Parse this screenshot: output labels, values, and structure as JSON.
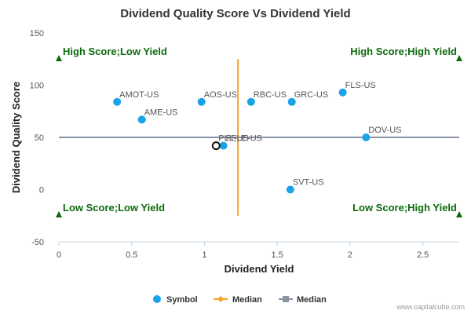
{
  "chart_data": {
    "type": "scatter",
    "title": "Dividend Quality Score Vs Dividend Yield",
    "xlabel": "Dividend Yield",
    "ylabel": "Dividend Quality Score",
    "xlim": [
      0,
      2.75
    ],
    "ylim": [
      -50,
      150
    ],
    "xticks": [
      0,
      0.5,
      1,
      1.5,
      2,
      2.5
    ],
    "xtick_labels": [
      "0",
      "0.5",
      "1",
      "1.5",
      "2",
      "2.5"
    ],
    "yticks": [
      -50,
      0,
      50,
      100,
      150
    ],
    "ytick_labels": [
      "-50",
      "0",
      "50",
      "100",
      "150"
    ],
    "grid": false,
    "legend_position": "bottom",
    "series": [
      {
        "name": "Symbol",
        "color": "#1aa3e8",
        "points": [
          {
            "label": "AMOT-US",
            "x": 0.4,
            "y": 84
          },
          {
            "label": "AME-US",
            "x": 0.57,
            "y": 67
          },
          {
            "label": "AOS-US",
            "x": 0.98,
            "y": 84
          },
          {
            "label": "RBC-US",
            "x": 1.32,
            "y": 84
          },
          {
            "label": "GRC-US",
            "x": 1.6,
            "y": 84
          },
          {
            "label": "FLS-US",
            "x": 1.95,
            "y": 93
          },
          {
            "label": "DOV-US",
            "x": 2.11,
            "y": 50
          },
          {
            "label": "SVT-US",
            "x": 1.59,
            "y": 0
          },
          {
            "label": "FELE-US",
            "x": 1.13,
            "y": 42
          }
        ],
        "highlight": {
          "label": "PLL-US",
          "x": 1.08,
          "y": 42
        }
      },
      {
        "name": "Median",
        "color": "#f5a623",
        "orientation": "vertical",
        "x": 1.23,
        "y_range": [
          -25,
          125
        ]
      },
      {
        "name": "Median",
        "color": "#8a93a6",
        "orientation": "horizontal",
        "y": 50,
        "x_range": [
          0,
          2.75
        ]
      }
    ],
    "quadrant_labels": {
      "top_left": "High Score;Low Yield",
      "top_right": "High Score;High Yield",
      "bottom_left": "Low Score;Low Yield",
      "bottom_right": "Low Score;High Yield"
    },
    "quadrant_marker_color": "#0b6b0b",
    "credit": "www.capitalcube.com"
  }
}
